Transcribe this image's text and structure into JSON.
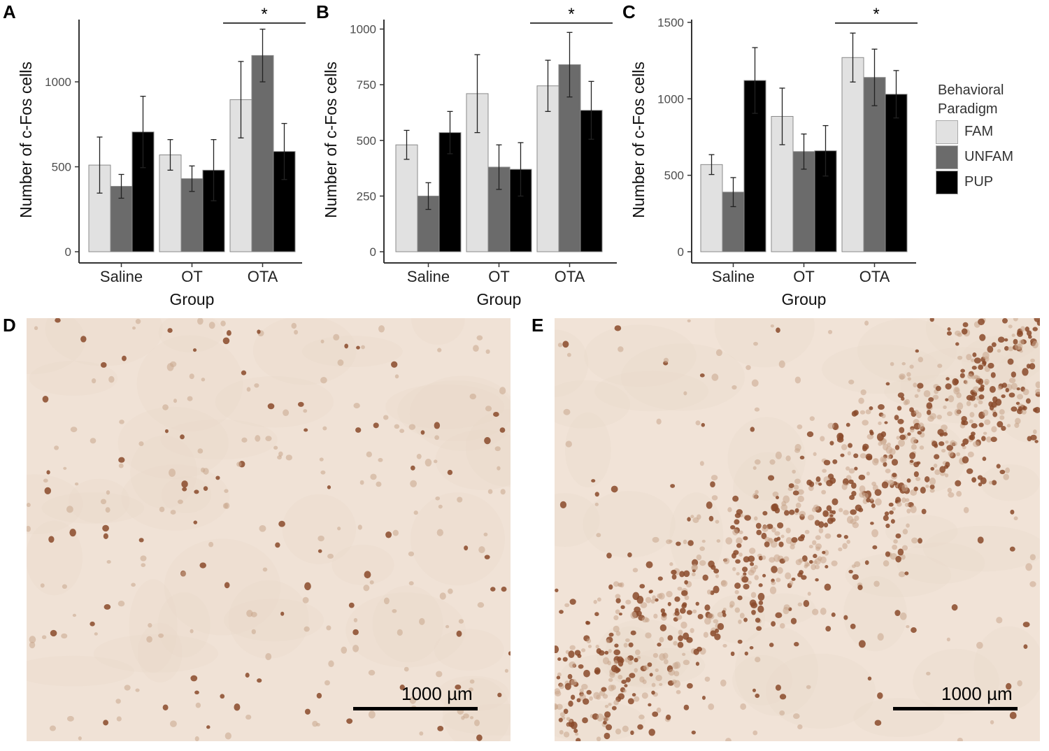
{
  "colors": {
    "FAM": "#e1e1e1",
    "UNFAM": "#6b6b6b",
    "PUP": "#000000"
  },
  "panels": {
    "A": "A",
    "B": "B",
    "C": "C",
    "D": "D",
    "E": "E"
  },
  "legend": {
    "title_line1": "Behavioral",
    "title_line2": "Paradigm",
    "items": [
      "FAM",
      "UNFAM",
      "PUP"
    ]
  },
  "chart_data": [
    {
      "type": "bar",
      "panel": "A",
      "categories": [
        "Saline",
        "OT",
        "OTA"
      ],
      "xlabel": "Group",
      "ylabel": "Number of c-Fos cells",
      "ylim": [
        0,
        1350
      ],
      "yticks": [
        0,
        500,
        1000
      ],
      "significance": "*",
      "significance_over": "OTA",
      "series": [
        {
          "name": "FAM",
          "values": [
            510,
            570,
            895
          ],
          "err": [
            165,
            90,
            225
          ]
        },
        {
          "name": "UNFAM",
          "values": [
            385,
            430,
            1155
          ],
          "err": [
            70,
            75,
            155
          ]
        },
        {
          "name": "PUP",
          "values": [
            705,
            480,
            590
          ],
          "err": [
            210,
            180,
            165
          ]
        }
      ]
    },
    {
      "type": "bar",
      "panel": "B",
      "categories": [
        "Saline",
        "OT",
        "OTA"
      ],
      "xlabel": "Group",
      "ylabel": "Number of c-Fos cells",
      "ylim": [
        0,
        1030
      ],
      "yticks": [
        0,
        250,
        500,
        750,
        1000
      ],
      "significance": "*",
      "significance_over": "OTA",
      "series": [
        {
          "name": "FAM",
          "values": [
            480,
            710,
            745
          ],
          "err": [
            65,
            175,
            115
          ]
        },
        {
          "name": "UNFAM",
          "values": [
            250,
            380,
            840
          ],
          "err": [
            60,
            100,
            145
          ]
        },
        {
          "name": "PUP",
          "values": [
            535,
            370,
            635
          ],
          "err": [
            95,
            120,
            130
          ]
        }
      ]
    },
    {
      "type": "bar",
      "panel": "C",
      "categories": [
        "Saline",
        "OT",
        "OTA"
      ],
      "xlabel": "Group",
      "ylabel": "Number of c-Fos cells",
      "ylim": [
        0,
        1500
      ],
      "yticks": [
        0,
        500,
        1000,
        1500
      ],
      "significance": "*",
      "significance_over": "OTA",
      "series": [
        {
          "name": "FAM",
          "values": [
            570,
            885,
            1270
          ],
          "err": [
            65,
            185,
            160
          ]
        },
        {
          "name": "UNFAM",
          "values": [
            390,
            655,
            1140
          ],
          "err": [
            95,
            115,
            185
          ]
        },
        {
          "name": "PUP",
          "values": [
            1120,
            660,
            1030
          ],
          "err": [
            215,
            165,
            155
          ]
        }
      ]
    }
  ],
  "micrographs": [
    {
      "panel": "D",
      "scale_label": "1000 µm",
      "density": "sparse"
    },
    {
      "panel": "E",
      "scale_label": "1000 µm",
      "density": "dense"
    }
  ]
}
